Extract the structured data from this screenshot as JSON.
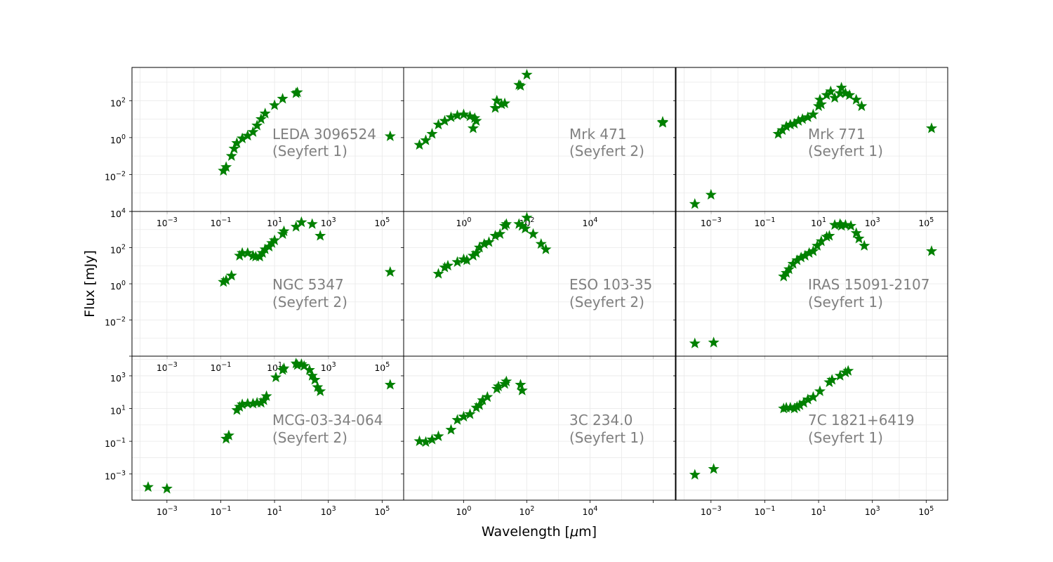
{
  "figure": {
    "xlabel": "Wavelength [",
    "xlabel_mu": "μ",
    "xlabel_unit": "m]",
    "ylabel": "Flux [mJy]"
  },
  "colors": {
    "marker": "#008000",
    "annotation": "#808080",
    "grid": "#e9e9e9"
  },
  "chart_data": [
    {
      "type": "scatter",
      "panel": "row1-col1",
      "name_line1": "LEDA 3096524",
      "name_line2": "(Seyfert 1)",
      "xscale": "log",
      "yscale": "log",
      "xlim_log10": [
        -4.3,
        5.8
      ],
      "ylim_log10": [
        -4.0,
        3.8
      ],
      "xticks": [
        "10^-3",
        "10^-1",
        "10^1",
        "10^3",
        "10^5"
      ],
      "yticks": [
        "10^-2",
        "10^0",
        "10^2"
      ],
      "points_log10": [
        [
          -0.9,
          -1.8
        ],
        [
          -0.8,
          -1.6
        ],
        [
          -0.6,
          -1.0
        ],
        [
          -0.5,
          -0.6
        ],
        [
          -0.4,
          -0.3
        ],
        [
          -0.2,
          -0.05
        ],
        [
          0,
          0.1
        ],
        [
          0.2,
          0.3
        ],
        [
          0.35,
          0.65
        ],
        [
          0.5,
          1.0
        ],
        [
          0.65,
          1.3
        ],
        [
          1.0,
          1.75
        ],
        [
          1.3,
          2.1
        ],
        [
          1.8,
          2.4
        ],
        [
          1.85,
          2.45
        ],
        [
          5.3,
          0.07
        ]
      ]
    },
    {
      "type": "scatter",
      "panel": "row1-col2",
      "name_line1": "Mrk  471",
      "name_line2": "(Seyfert 2)",
      "xscale": "log",
      "yscale": "log",
      "xlim_log10": [
        -1.9,
        6.7
      ],
      "ylim_log10": [
        -4.0,
        3.8
      ],
      "xticks": [
        "10^0",
        "10^2",
        "10^4"
      ],
      "yticks": [],
      "points_log10": [
        [
          -1.4,
          -0.4
        ],
        [
          -1.2,
          -0.15
        ],
        [
          -1.0,
          0.2
        ],
        [
          -0.8,
          0.7
        ],
        [
          -0.6,
          0.9
        ],
        [
          -0.4,
          1.1
        ],
        [
          -0.2,
          1.2
        ],
        [
          0,
          1.25
        ],
        [
          0.2,
          1.15
        ],
        [
          0.3,
          0.5
        ],
        [
          0.35,
          1.05
        ],
        [
          0.4,
          0.9
        ],
        [
          1.0,
          1.6
        ],
        [
          1.05,
          2.0
        ],
        [
          1.2,
          1.8
        ],
        [
          1.3,
          1.85
        ],
        [
          1.75,
          2.85
        ],
        [
          1.8,
          2.8
        ],
        [
          2.0,
          3.4
        ],
        [
          6.3,
          0.8
        ],
        [
          6.3,
          0.85
        ]
      ]
    },
    {
      "type": "scatter",
      "panel": "row1-col3",
      "name_line1": "Mrk  771",
      "name_line2": "(Seyfert 1)",
      "xscale": "log",
      "yscale": "log",
      "xlim_log10": [
        -4.3,
        5.8
      ],
      "ylim_log10": [
        -4.0,
        3.8
      ],
      "xticks": [
        "10^-3",
        "10^-1",
        "10^1",
        "10^3",
        "10^5"
      ],
      "yticks": [],
      "points_log10": [
        [
          -3.6,
          -3.6
        ],
        [
          -3.0,
          -3.1
        ],
        [
          -0.5,
          0.2
        ],
        [
          -0.35,
          0.4
        ],
        [
          -0.2,
          0.6
        ],
        [
          -0.05,
          0.7
        ],
        [
          0.1,
          0.75
        ],
        [
          0.25,
          0.9
        ],
        [
          0.4,
          1.0
        ],
        [
          0.6,
          1.1
        ],
        [
          0.8,
          1.25
        ],
        [
          1.0,
          1.7
        ],
        [
          1.05,
          2.05
        ],
        [
          1.1,
          1.8
        ],
        [
          1.3,
          2.3
        ],
        [
          1.45,
          2.5
        ],
        [
          1.6,
          2.15
        ],
        [
          1.8,
          2.4
        ],
        [
          1.85,
          2.7
        ],
        [
          2.0,
          2.4
        ],
        [
          2.15,
          2.3
        ],
        [
          2.4,
          2.05
        ],
        [
          2.6,
          1.7
        ],
        [
          5.2,
          0.5
        ]
      ]
    },
    {
      "type": "scatter",
      "panel": "row2-col1",
      "name_line1": "NGC  5347",
      "name_line2": "(Seyfert 2)",
      "xscale": "log",
      "yscale": "log",
      "xlim_log10": [
        -4.3,
        5.8
      ],
      "ylim_log10": [
        -4.0,
        4.0
      ],
      "xticks": [
        "10^-3",
        "10^-1",
        "10^1",
        "10^3",
        "10^5"
      ],
      "yticks": [
        "10^-2",
        "10^0",
        "10^2",
        "10^4"
      ],
      "points_log10": [
        [
          -0.9,
          0.1
        ],
        [
          -0.8,
          0.2
        ],
        [
          -0.6,
          0.45
        ],
        [
          -0.3,
          1.55
        ],
        [
          -0.2,
          1.7
        ],
        [
          0,
          1.7
        ],
        [
          0.2,
          1.55
        ],
        [
          0.3,
          1.5
        ],
        [
          0.45,
          1.5
        ],
        [
          0.55,
          1.7
        ],
        [
          0.65,
          1.9
        ],
        [
          0.8,
          2.05
        ],
        [
          0.9,
          2.25
        ],
        [
          1.0,
          2.4
        ],
        [
          1.3,
          2.75
        ],
        [
          1.35,
          2.9
        ],
        [
          1.8,
          3.15
        ],
        [
          2.0,
          3.4
        ],
        [
          2.4,
          3.3
        ],
        [
          2.7,
          2.65
        ],
        [
          5.3,
          0.65
        ]
      ]
    },
    {
      "type": "scatter",
      "panel": "row2-col2",
      "name_line1": "ESO 103-35",
      "name_line2": "(Seyfert 2)",
      "xscale": "log",
      "yscale": "log",
      "xlim_log10": [
        -1.9,
        6.7
      ],
      "ylim_log10": [
        -4.0,
        4.0
      ],
      "xticks": [],
      "yticks": [],
      "points_log10": [
        [
          -0.8,
          0.55
        ],
        [
          -0.6,
          0.9
        ],
        [
          -0.5,
          1.0
        ],
        [
          -0.2,
          1.2
        ],
        [
          0,
          1.35
        ],
        [
          0.1,
          1.3
        ],
        [
          0.3,
          1.55
        ],
        [
          0.4,
          1.7
        ],
        [
          0.5,
          2.0
        ],
        [
          0.65,
          2.2
        ],
        [
          0.8,
          2.3
        ],
        [
          1.0,
          2.65
        ],
        [
          1.15,
          2.75
        ],
        [
          1.3,
          3.2
        ],
        [
          1.35,
          3.3
        ],
        [
          1.75,
          3.3
        ],
        [
          1.85,
          3.2
        ],
        [
          1.95,
          3.05
        ],
        [
          2.0,
          3.65
        ],
        [
          2.2,
          2.75
        ],
        [
          2.45,
          2.2
        ],
        [
          2.6,
          1.9
        ]
      ]
    },
    {
      "type": "scatter",
      "panel": "row2-col3",
      "name_line1": "IRAS 15091-2107",
      "name_line2": "(Seyfert 1)",
      "xscale": "log",
      "yscale": "log",
      "xlim_log10": [
        -4.3,
        5.8
      ],
      "ylim_log10": [
        -4.0,
        4.0
      ],
      "xticks": [],
      "yticks": [],
      "points_log10": [
        [
          -3.6,
          -3.3
        ],
        [
          -2.9,
          -3.25
        ],
        [
          -0.3,
          0.4
        ],
        [
          -0.2,
          0.6
        ],
        [
          -0.1,
          0.8
        ],
        [
          0.05,
          1.1
        ],
        [
          0.2,
          1.3
        ],
        [
          0.35,
          1.45
        ],
        [
          0.5,
          1.55
        ],
        [
          0.65,
          1.7
        ],
        [
          0.8,
          1.8
        ],
        [
          0.95,
          2.1
        ],
        [
          1.1,
          2.35
        ],
        [
          1.3,
          2.6
        ],
        [
          1.4,
          2.65
        ],
        [
          1.6,
          3.25
        ],
        [
          1.8,
          3.3
        ],
        [
          1.85,
          3.2
        ],
        [
          2.0,
          3.25
        ],
        [
          2.2,
          3.2
        ],
        [
          2.4,
          2.8
        ],
        [
          2.5,
          2.5
        ],
        [
          2.7,
          2.1
        ],
        [
          5.2,
          1.8
        ]
      ]
    },
    {
      "type": "scatter",
      "panel": "row3-col1",
      "name_line1": "MCG-03-34-064",
      "name_line2": "(Seyfert 2)",
      "xscale": "log",
      "yscale": "log",
      "xlim_log10": [
        -4.3,
        5.8
      ],
      "ylim_log10": [
        -4.6,
        4.2
      ],
      "xticks": [
        "10^-3",
        "10^-1",
        "10^1",
        "10^3",
        "10^5"
      ],
      "yticks": [
        "10^-3",
        "10^-1",
        "10^1",
        "10^3"
      ],
      "points_log10": [
        [
          -3.7,
          -3.8
        ],
        [
          -3.0,
          -3.9
        ],
        [
          -0.8,
          -0.85
        ],
        [
          -0.7,
          -0.65
        ],
        [
          -0.4,
          0.9
        ],
        [
          -0.3,
          1.1
        ],
        [
          -0.2,
          1.25
        ],
        [
          0,
          1.3
        ],
        [
          0.2,
          1.3
        ],
        [
          0.35,
          1.35
        ],
        [
          0.5,
          1.35
        ],
        [
          0.6,
          1.5
        ],
        [
          0.7,
          1.75
        ],
        [
          1.05,
          2.9
        ],
        [
          1.3,
          3.35
        ],
        [
          1.35,
          3.45
        ],
        [
          1.8,
          3.75
        ],
        [
          1.85,
          3.65
        ],
        [
          2.0,
          3.7
        ],
        [
          2.1,
          3.6
        ],
        [
          2.3,
          3.35
        ],
        [
          2.4,
          3.0
        ],
        [
          2.5,
          2.75
        ],
        [
          2.6,
          2.3
        ],
        [
          2.7,
          2.05
        ],
        [
          5.3,
          2.45
        ]
      ]
    },
    {
      "type": "scatter",
      "panel": "row3-col2",
      "name_line1": "3C 234.0",
      "name_line2": "(Seyfert 1)",
      "xscale": "log",
      "yscale": "log",
      "xlim_log10": [
        -1.9,
        6.7
      ],
      "ylim_log10": [
        -4.6,
        4.2
      ],
      "xticks": [
        "10^0",
        "10^2",
        "10^4"
      ],
      "yticks": [],
      "points_log10": [
        [
          -1.4,
          -1.0
        ],
        [
          -1.2,
          -1.05
        ],
        [
          -1.0,
          -0.9
        ],
        [
          -0.8,
          -0.7
        ],
        [
          -0.4,
          -0.3
        ],
        [
          -0.2,
          0.3
        ],
        [
          0,
          0.5
        ],
        [
          0.2,
          0.65
        ],
        [
          0.4,
          1.05
        ],
        [
          0.5,
          1.2
        ],
        [
          0.6,
          1.5
        ],
        [
          0.75,
          1.7
        ],
        [
          1.05,
          2.2
        ],
        [
          1.1,
          2.35
        ],
        [
          1.3,
          2.5
        ],
        [
          1.35,
          2.65
        ],
        [
          1.8,
          2.45
        ],
        [
          1.85,
          2.1
        ]
      ]
    },
    {
      "type": "scatter",
      "panel": "row3-col3",
      "name_line1": "7C 1821+6419",
      "name_line2": "(Seyfert 1)",
      "xscale": "log",
      "yscale": "log",
      "xlim_log10": [
        -4.3,
        5.8
      ],
      "ylim_log10": [
        -4.6,
        4.2
      ],
      "xticks": [
        "10^-3",
        "10^-1",
        "10^1",
        "10^3",
        "10^5"
      ],
      "yticks": [],
      "points_log10": [
        [
          -3.6,
          -3.05
        ],
        [
          -2.9,
          -2.7
        ],
        [
          -0.3,
          1.0
        ],
        [
          -0.2,
          1.05
        ],
        [
          -0.05,
          1.05
        ],
        [
          0.1,
          1.0
        ],
        [
          0.2,
          1.1
        ],
        [
          0.3,
          1.2
        ],
        [
          0.45,
          1.35
        ],
        [
          0.6,
          1.55
        ],
        [
          0.8,
          1.7
        ],
        [
          1.05,
          2.05
        ],
        [
          1.4,
          2.6
        ],
        [
          1.5,
          2.75
        ],
        [
          1.8,
          3.0
        ],
        [
          2.0,
          3.2
        ],
        [
          2.1,
          3.3
        ]
      ]
    }
  ]
}
